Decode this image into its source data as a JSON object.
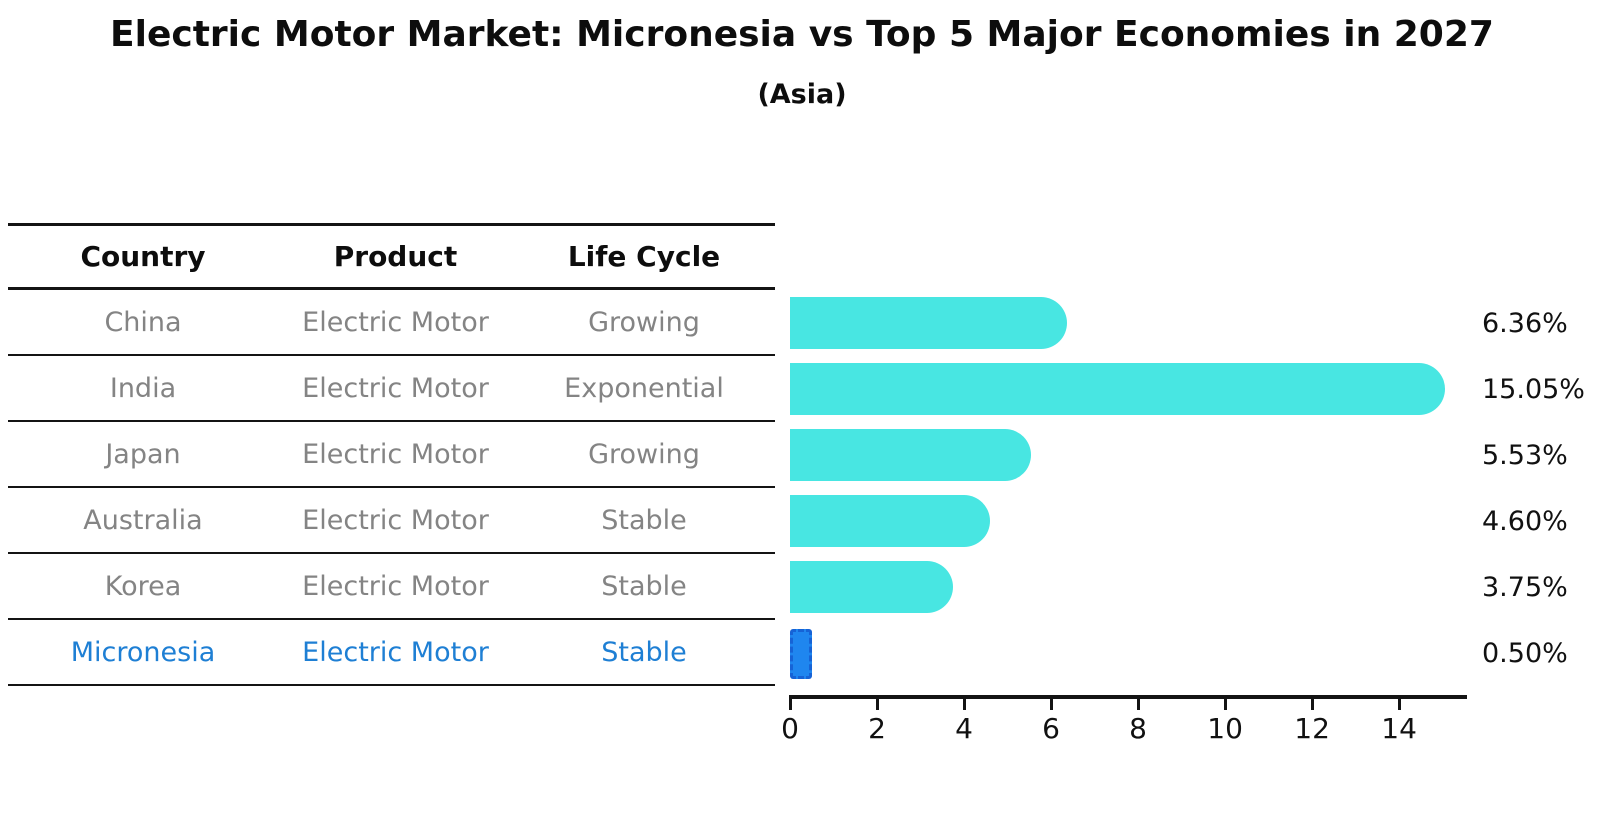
{
  "title": "Electric Motor Market: Micronesia vs Top 5 Major Economies in 2027",
  "subtitle": "(Asia)",
  "table": {
    "headers": [
      "Country",
      "Product",
      "Life Cycle"
    ]
  },
  "chart_data": {
    "type": "bar",
    "orientation": "horizontal",
    "title": "Electric Motor Market: Micronesia vs Top 5 Major Economies in 2027",
    "subtitle": "(Asia)",
    "xlabel": "",
    "ylabel": "",
    "categories": [
      "China",
      "India",
      "Japan",
      "Australia",
      "Korea",
      "Micronesia"
    ],
    "values": [
      6.36,
      15.05,
      5.53,
      4.6,
      3.75,
      0.5
    ],
    "value_labels": [
      "6.36%",
      "15.05%",
      "5.53%",
      "4.60%",
      "3.75%",
      "0.50%"
    ],
    "x_ticks": [
      0,
      2,
      4,
      6,
      8,
      10,
      12,
      14
    ],
    "xlim": [
      0,
      15.56
    ],
    "grid": false,
    "legend": false,
    "rows": [
      {
        "country": "China",
        "product": "Electric Motor",
        "life_cycle": "Growing",
        "value": 6.36,
        "label": "6.36%",
        "highlight": false
      },
      {
        "country": "India",
        "product": "Electric Motor",
        "life_cycle": "Exponential",
        "value": 15.05,
        "label": "15.05%",
        "highlight": false
      },
      {
        "country": "Japan",
        "product": "Electric Motor",
        "life_cycle": "Growing",
        "value": 5.53,
        "label": "5.53%",
        "highlight": false
      },
      {
        "country": "Australia",
        "product": "Electric Motor",
        "life_cycle": "Stable",
        "value": 4.6,
        "label": "4.60%",
        "highlight": false
      },
      {
        "country": "Korea",
        "product": "Electric Motor",
        "life_cycle": "Stable",
        "value": 3.75,
        "label": "3.75%",
        "highlight": false
      },
      {
        "country": "Micronesia",
        "product": "Electric Motor",
        "life_cycle": "Stable",
        "value": 0.5,
        "label": "0.50%",
        "highlight": true
      }
    ]
  },
  "colors": {
    "bar_fill": "#48E6E2",
    "highlight_bar_fill": "#1F86EF",
    "highlight_bar_edge": "#1663D6",
    "row_text": "#848484",
    "highlight_text": "#1E7FD4",
    "heading_text": "#0d0d0d",
    "axis": "#141414"
  }
}
